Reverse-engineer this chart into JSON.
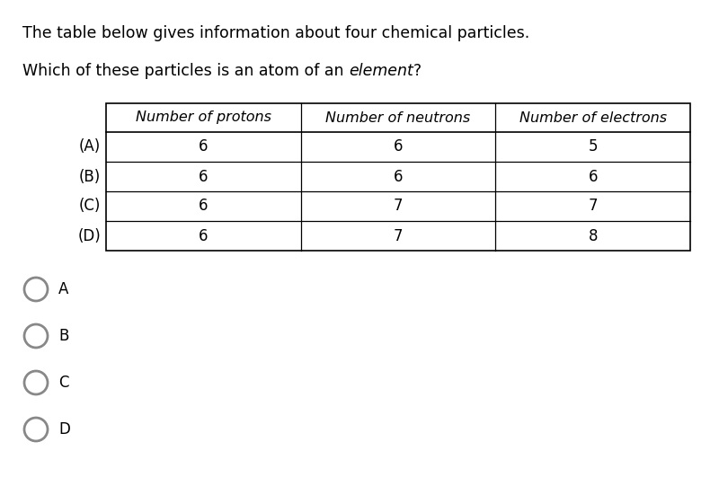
{
  "title_line1": "The table below gives information about four chemical particles.",
  "title_line2_normal": "Which of these particles is an atom of an ",
  "title_line2_italic": "element",
  "title_line2_end": "?",
  "col_headers": [
    "Number of protons",
    "Number of neutrons",
    "Number of electrons"
  ],
  "row_labels": [
    "(A)",
    "(B)",
    "(C)",
    "(D)"
  ],
  "table_data": [
    [
      6,
      6,
      5
    ],
    [
      6,
      6,
      6
    ],
    [
      6,
      7,
      7
    ],
    [
      6,
      7,
      8
    ]
  ],
  "options": [
    "A",
    "B",
    "C",
    "D"
  ],
  "bg_color": "#ffffff",
  "text_color": "#000000",
  "circle_color": "#888888",
  "font_size_title": 12.5,
  "font_size_table": 12,
  "font_size_options": 12
}
